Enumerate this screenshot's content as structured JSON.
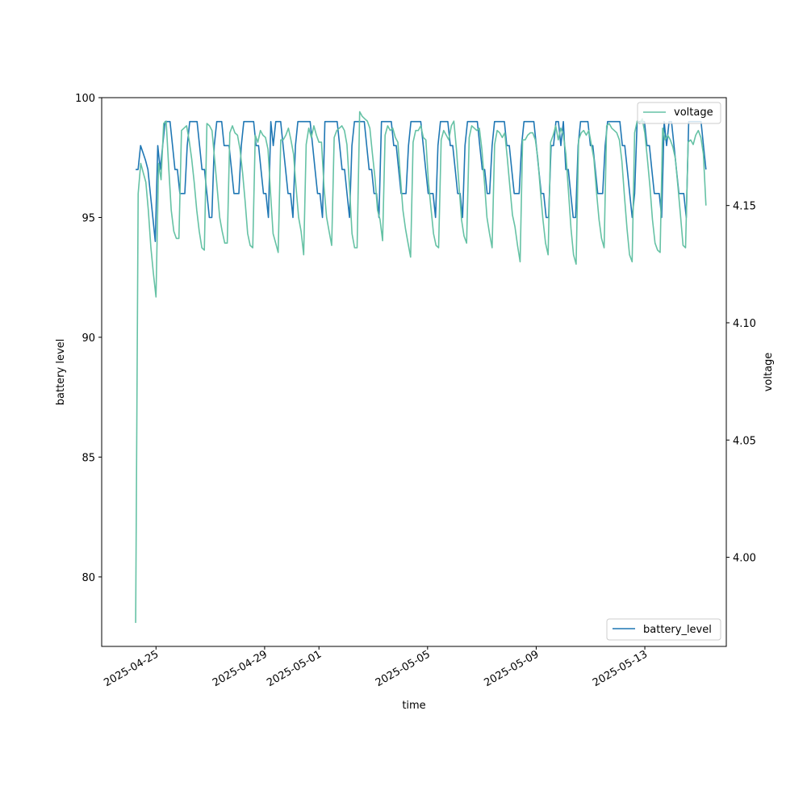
{
  "chart_data": {
    "type": "line",
    "xlabel": "time",
    "ylabel": "battery level",
    "ylabel_right": "voltage",
    "x_start": "2025-04-24T06:00",
    "x_end": "2025-05-15T06:00",
    "xlim": [
      "2025-04-23T00:00",
      "2025-05-16T00:00"
    ],
    "ylim": [
      77.1,
      100.0
    ],
    "ylim_right": [
      3.962,
      4.196
    ],
    "x_ticks": [
      {
        "date": "2025-04-25T00:00",
        "label": "2025-04-25"
      },
      {
        "date": "2025-04-29T00:00",
        "label": "2025-04-29"
      },
      {
        "date": "2025-05-01T00:00",
        "label": "2025-05-01"
      },
      {
        "date": "2025-05-05T00:00",
        "label": "2025-05-05"
      },
      {
        "date": "2025-05-09T00:00",
        "label": "2025-05-09"
      },
      {
        "date": "2025-05-13T00:00",
        "label": "2025-05-13"
      }
    ],
    "y_ticks": [
      {
        "value": 80,
        "label": "80"
      },
      {
        "value": 85,
        "label": "85"
      },
      {
        "value": 90,
        "label": "90"
      },
      {
        "value": 95,
        "label": "95"
      },
      {
        "value": 100,
        "label": "100"
      }
    ],
    "y_ticks_right": [
      {
        "value": 4.0,
        "label": "4.00"
      },
      {
        "value": 4.05,
        "label": "4.05"
      },
      {
        "value": 4.1,
        "label": "4.10"
      },
      {
        "value": 4.15,
        "label": "4.15"
      }
    ],
    "grid": false,
    "series": [
      {
        "name": "battery_level",
        "axis": "left",
        "color": "#1f77b4",
        "legend_position": "lower-right",
        "values": [
          97,
          97,
          98,
          97.7,
          97.4,
          97,
          96,
          95,
          94,
          98,
          97,
          98,
          99,
          99,
          99,
          98,
          97,
          97,
          96,
          96,
          96,
          98,
          99,
          99,
          99,
          99,
          98,
          97,
          97,
          96,
          95,
          95,
          98,
          99,
          99,
          99,
          98,
          98,
          98,
          97,
          96,
          96,
          96,
          98,
          99,
          99,
          99,
          99,
          99,
          98,
          98,
          97,
          96,
          96,
          95,
          99,
          98,
          99,
          99,
          99,
          98,
          97,
          96,
          96,
          95,
          98,
          99,
          99,
          99,
          99,
          99,
          99,
          98,
          97,
          96,
          96,
          95,
          99,
          99,
          99,
          99,
          99,
          99,
          98,
          97,
          97,
          96,
          95,
          98,
          99,
          99,
          99,
          99,
          99,
          98,
          97,
          97,
          96,
          96,
          95,
          99,
          99,
          99,
          99,
          99,
          98,
          98,
          97,
          96,
          96,
          96,
          98,
          99,
          99,
          99,
          99,
          99,
          98,
          97,
          96,
          96,
          96,
          95,
          98,
          99,
          99,
          99,
          99,
          98,
          98,
          97,
          96,
          96,
          95,
          98,
          99,
          99,
          99,
          99,
          99,
          98,
          97,
          97,
          96,
          96,
          98,
          99,
          99,
          99,
          99,
          99,
          98,
          98,
          97,
          96,
          96,
          96,
          98,
          99,
          99,
          99,
          99,
          99,
          98,
          97,
          96,
          96,
          95,
          95,
          98,
          98,
          99,
          99,
          98,
          99,
          97,
          97,
          96,
          95,
          95,
          98,
          99,
          99,
          99,
          99,
          98,
          98,
          97,
          96,
          96,
          96,
          98,
          99,
          99,
          99,
          99,
          99,
          99,
          98,
          98,
          97,
          96,
          95,
          96,
          99,
          99,
          99,
          99,
          98,
          98,
          97,
          96,
          96,
          96,
          95,
          99,
          98,
          99,
          99,
          98,
          97,
          96,
          96,
          96,
          95,
          99,
          99,
          99,
          99,
          99,
          99,
          98,
          97
        ]
      },
      {
        "name": "voltage",
        "axis": "right",
        "color": "#66c2a5",
        "legend_position": "upper-right",
        "values": [
          3.972,
          4.155,
          4.168,
          4.164,
          4.16,
          4.148,
          4.132,
          4.121,
          4.111,
          4.168,
          4.161,
          4.185,
          4.186,
          4.166,
          4.148,
          4.139,
          4.136,
          4.136,
          4.182,
          4.183,
          4.184,
          4.178,
          4.17,
          4.16,
          4.148,
          4.139,
          4.132,
          4.131,
          4.185,
          4.184,
          4.182,
          4.17,
          4.158,
          4.145,
          4.139,
          4.134,
          4.134,
          4.181,
          4.184,
          4.181,
          4.18,
          4.174,
          4.164,
          4.152,
          4.138,
          4.133,
          4.132,
          4.18,
          4.177,
          4.182,
          4.18,
          4.179,
          4.174,
          4.155,
          4.138,
          4.134,
          4.13,
          4.178,
          4.178,
          4.18,
          4.183,
          4.178,
          4.172,
          4.158,
          4.145,
          4.139,
          4.129,
          4.176,
          4.183,
          4.179,
          4.184,
          4.18,
          4.177,
          4.177,
          4.158,
          4.145,
          4.139,
          4.133,
          4.179,
          4.182,
          4.183,
          4.184,
          4.182,
          4.176,
          4.158,
          4.138,
          4.132,
          4.132,
          4.19,
          4.188,
          4.187,
          4.186,
          4.183,
          4.172,
          4.162,
          4.148,
          4.144,
          4.135,
          4.18,
          4.184,
          4.182,
          4.183,
          4.179,
          4.177,
          4.162,
          4.148,
          4.14,
          4.134,
          4.128,
          4.177,
          4.182,
          4.182,
          4.184,
          4.179,
          4.178,
          4.16,
          4.149,
          4.138,
          4.133,
          4.132,
          4.178,
          4.182,
          4.18,
          4.178,
          4.184,
          4.186,
          4.174,
          4.159,
          4.144,
          4.137,
          4.134,
          4.179,
          4.184,
          4.183,
          4.182,
          4.183,
          4.174,
          4.16,
          4.145,
          4.138,
          4.132,
          4.176,
          4.182,
          4.181,
          4.179,
          4.181,
          4.17,
          4.158,
          4.146,
          4.141,
          4.133,
          4.126,
          4.178,
          4.178,
          4.18,
          4.181,
          4.181,
          4.178,
          4.17,
          4.156,
          4.144,
          4.134,
          4.129,
          4.177,
          4.18,
          4.184,
          4.178,
          4.183,
          4.18,
          4.172,
          4.156,
          4.14,
          4.129,
          4.125,
          4.178,
          4.181,
          4.182,
          4.18,
          4.182,
          4.176,
          4.17,
          4.156,
          4.144,
          4.136,
          4.132,
          4.184,
          4.185,
          4.183,
          4.182,
          4.181,
          4.178,
          4.169,
          4.154,
          4.14,
          4.129,
          4.126,
          4.181,
          4.186,
          4.185,
          4.187,
          4.181,
          4.17,
          4.158,
          4.144,
          4.134,
          4.131,
          4.13,
          4.183,
          4.178,
          4.18,
          4.178,
          4.175,
          4.17,
          4.158,
          4.146,
          4.133,
          4.132,
          4.177,
          4.178,
          4.176,
          4.18,
          4.182,
          4.179,
          4.172,
          4.15
        ]
      }
    ]
  }
}
